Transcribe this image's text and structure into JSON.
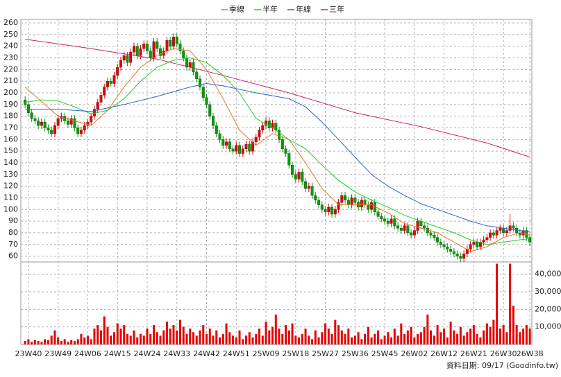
{
  "chart_data": {
    "type": "candlestick",
    "up_color": "#e60000",
    "down_color": "#00a000",
    "open": [
      194,
      190,
      183,
      178,
      176,
      172,
      175,
      170,
      168,
      165,
      172,
      178,
      180,
      176,
      173,
      178,
      170,
      165,
      168,
      172,
      175,
      180,
      186,
      192,
      198,
      205,
      210,
      208,
      215,
      222,
      228,
      232,
      226,
      235,
      240,
      232,
      238,
      242,
      236,
      230,
      244,
      238,
      232,
      236,
      245,
      240,
      248,
      242,
      236,
      230,
      222,
      226,
      218,
      212,
      205,
      196,
      190,
      180,
      172,
      165,
      160,
      155,
      158,
      152,
      150,
      155,
      148,
      152,
      156,
      150,
      158,
      162,
      168,
      172,
      176,
      170,
      174,
      168,
      160,
      152,
      148,
      138,
      130,
      126,
      132,
      124,
      118,
      120,
      112,
      108,
      104,
      100,
      98,
      102,
      96,
      100,
      106,
      112,
      108,
      104,
      110,
      106,
      102,
      108,
      104,
      100,
      106,
      98,
      94,
      92,
      90,
      88,
      92,
      86,
      84,
      82,
      86,
      80,
      78,
      82,
      90,
      86,
      84,
      80,
      78,
      76,
      72,
      70,
      68,
      66,
      64,
      62,
      60,
      58,
      62,
      66,
      70,
      72,
      68,
      72,
      74,
      76,
      80,
      78,
      82,
      84,
      80,
      82,
      86,
      84,
      80,
      78,
      82,
      76
    ],
    "high": [
      197,
      193,
      186,
      181,
      179,
      178,
      178,
      173,
      171,
      175,
      181,
      183,
      183,
      179,
      181,
      181,
      173,
      171,
      175,
      178,
      183,
      189,
      195,
      201,
      208,
      213,
      213,
      218,
      225,
      231,
      235,
      235,
      238,
      243,
      243,
      241,
      245,
      245,
      239,
      247,
      247,
      241,
      239,
      248,
      248,
      251,
      251,
      245,
      239,
      233,
      229,
      229,
      221,
      215,
      208,
      199,
      193,
      183,
      175,
      168,
      163,
      161,
      161,
      155,
      158,
      158,
      155,
      159,
      159,
      161,
      165,
      171,
      175,
      179,
      179,
      177,
      177,
      171,
      163,
      155,
      151,
      141,
      133,
      135,
      135,
      127,
      123,
      123,
      115,
      111,
      107,
      103,
      105,
      105,
      103,
      109,
      115,
      115,
      111,
      113,
      113,
      109,
      111,
      111,
      107,
      109,
      109,
      101,
      97,
      95,
      93,
      95,
      95,
      89,
      87,
      89,
      89,
      83,
      85,
      93,
      93,
      89,
      87,
      83,
      81,
      79,
      75,
      73,
      71,
      69,
      67,
      65,
      63,
      65,
      69,
      73,
      75,
      75,
      75,
      77,
      79,
      83,
      83,
      85,
      87,
      87,
      85,
      96,
      89,
      87,
      83,
      85,
      85,
      79
    ],
    "low": [
      187,
      180,
      175,
      173,
      169,
      169,
      167,
      165,
      162,
      162,
      169,
      175,
      173,
      170,
      170,
      167,
      162,
      162,
      165,
      169,
      172,
      177,
      183,
      189,
      195,
      202,
      205,
      205,
      212,
      219,
      225,
      223,
      223,
      232,
      229,
      229,
      235,
      233,
      227,
      227,
      235,
      229,
      229,
      233,
      237,
      237,
      239,
      233,
      227,
      219,
      219,
      215,
      209,
      202,
      193,
      187,
      177,
      169,
      162,
      157,
      152,
      152,
      149,
      147,
      147,
      145,
      145,
      149,
      147,
      147,
      155,
      159,
      165,
      169,
      167,
      167,
      165,
      157,
      149,
      145,
      135,
      127,
      123,
      123,
      121,
      115,
      115,
      109,
      105,
      101,
      97,
      95,
      95,
      93,
      93,
      97,
      103,
      105,
      101,
      101,
      103,
      99,
      99,
      101,
      97,
      97,
      95,
      91,
      89,
      87,
      85,
      85,
      83,
      81,
      79,
      79,
      77,
      75,
      75,
      79,
      83,
      81,
      77,
      75,
      73,
      69,
      67,
      65,
      63,
      61,
      59,
      57,
      55,
      55,
      59,
      63,
      67,
      65,
      65,
      69,
      71,
      73,
      75,
      75,
      79,
      77,
      77,
      79,
      81,
      77,
      75,
      75,
      73,
      69
    ],
    "close": [
      190,
      183,
      178,
      176,
      172,
      175,
      170,
      168,
      165,
      172,
      178,
      180,
      176,
      173,
      178,
      170,
      165,
      168,
      172,
      175,
      180,
      186,
      192,
      198,
      205,
      210,
      208,
      215,
      222,
      228,
      232,
      226,
      235,
      240,
      232,
      238,
      242,
      236,
      230,
      244,
      238,
      232,
      236,
      245,
      240,
      248,
      242,
      236,
      230,
      222,
      226,
      218,
      212,
      205,
      196,
      190,
      180,
      172,
      165,
      160,
      155,
      158,
      152,
      150,
      155,
      148,
      152,
      156,
      150,
      158,
      162,
      168,
      172,
      176,
      170,
      174,
      168,
      160,
      152,
      148,
      138,
      130,
      126,
      132,
      124,
      118,
      120,
      112,
      108,
      104,
      100,
      98,
      102,
      96,
      100,
      106,
      112,
      108,
      104,
      110,
      106,
      102,
      108,
      104,
      100,
      106,
      98,
      94,
      92,
      90,
      88,
      92,
      86,
      84,
      82,
      86,
      80,
      78,
      82,
      90,
      86,
      84,
      80,
      78,
      76,
      72,
      70,
      68,
      66,
      64,
      62,
      60,
      58,
      62,
      66,
      70,
      72,
      68,
      72,
      74,
      76,
      80,
      78,
      82,
      84,
      80,
      82,
      86,
      84,
      80,
      78,
      82,
      76,
      72
    ],
    "xlim": [
      -1.3,
      153.6
    ],
    "xticks": [
      {
        "value": 1,
        "label": "23W40"
      },
      {
        "value": 10,
        "label": "23W49"
      },
      {
        "value": 19,
        "label": "24W06"
      },
      {
        "value": 28,
        "label": "24W15"
      },
      {
        "value": 37,
        "label": "24W24"
      },
      {
        "value": 46,
        "label": "24W33"
      },
      {
        "value": 55,
        "label": "24W42"
      },
      {
        "value": 64,
        "label": "24W51"
      },
      {
        "value": 73,
        "label": "25W09"
      },
      {
        "value": 82,
        "label": "25W18"
      },
      {
        "value": 91,
        "label": "25W27"
      },
      {
        "value": 100,
        "label": "25W36"
      },
      {
        "value": 109,
        "label": "25W45"
      },
      {
        "value": 118,
        "label": "26W02"
      },
      {
        "value": 127,
        "label": "26W12"
      },
      {
        "value": 136,
        "label": "26W21"
      },
      {
        "value": 145,
        "label": "26W30"
      },
      {
        "value": 153,
        "label": "26W38"
      }
    ],
    "ylim": [
      55,
      263
    ],
    "yticks": [
      60,
      70,
      80,
      90,
      100,
      110,
      120,
      130,
      140,
      150,
      160,
      170,
      180,
      190,
      200,
      210,
      220,
      230,
      240,
      250,
      260
    ],
    "grid": true,
    "moving_averages": [
      {
        "name": "季線",
        "color": "#e87722",
        "x": [
          0,
          10,
          20,
          25,
          30,
          35,
          40,
          45,
          50,
          55,
          60,
          65,
          70,
          75,
          80,
          85,
          90,
          95,
          100,
          105,
          110,
          115,
          120,
          125,
          130,
          135,
          140,
          145,
          150,
          153
        ],
        "values": [
          205,
          180,
          172,
          185,
          205,
          222,
          232,
          238,
          236,
          220,
          195,
          168,
          155,
          165,
          160,
          140,
          118,
          104,
          104,
          104,
          97,
          88,
          84,
          80,
          72,
          64,
          68,
          76,
          80,
          78
        ]
      },
      {
        "name": "半年",
        "color": "#22cc22",
        "x": [
          0,
          5,
          10,
          15,
          20,
          25,
          30,
          35,
          40,
          45,
          50,
          55,
          60,
          65,
          70,
          75,
          80,
          85,
          90,
          95,
          100,
          105,
          110,
          115,
          120,
          125,
          130,
          135,
          140,
          145,
          150,
          153
        ],
        "values": [
          192,
          194,
          193,
          188,
          182,
          185,
          195,
          210,
          222,
          228,
          230,
          226,
          215,
          200,
          178,
          170,
          160,
          152,
          138,
          125,
          115,
          108,
          102,
          95,
          90,
          85,
          80,
          74,
          70,
          72,
          74,
          75
        ]
      },
      {
        "name": "年線",
        "color": "#2266cc",
        "x": [
          0,
          10,
          20,
          30,
          40,
          50,
          55,
          60,
          70,
          80,
          85,
          90,
          95,
          100,
          105,
          110,
          115,
          120,
          125,
          130,
          135,
          140,
          145,
          150,
          153
        ],
        "values": [
          186,
          186,
          184,
          190,
          197,
          205,
          208,
          206,
          200,
          195,
          188,
          175,
          160,
          145,
          130,
          120,
          112,
          105,
          100,
          95,
          90,
          86,
          84,
          82,
          81
        ]
      },
      {
        "name": "三年",
        "color": "#cc2266",
        "x": [
          0,
          20,
          40,
          60,
          80,
          100,
          120,
          140,
          153
        ],
        "values": [
          246,
          238,
          229,
          215,
          200,
          183,
          171,
          157,
          145
        ]
      }
    ],
    "volume": {
      "color": "#e60000",
      "ylim": [
        0,
        47000
      ],
      "yticks": [
        {
          "value": 10000,
          "label": "10,000"
        },
        {
          "value": 20000,
          "label": "20,000"
        },
        {
          "value": 30000,
          "label": "30,000"
        },
        {
          "value": 40000,
          "label": "40,000"
        }
      ],
      "values": [
        2000,
        3000,
        1500,
        2500,
        2000,
        1500,
        3000,
        2500,
        5000,
        8000,
        4000,
        2000,
        3000,
        1500,
        2500,
        2000,
        3000,
        6000,
        4000,
        5000,
        3000,
        9000,
        11000,
        8000,
        16000,
        10000,
        5000,
        7000,
        12000,
        9000,
        11000,
        6000,
        5000,
        8000,
        4000,
        6000,
        5000,
        9000,
        6000,
        11000,
        7000,
        5000,
        8000,
        13000,
        9000,
        11000,
        8000,
        14000,
        10000,
        6000,
        9000,
        7000,
        5000,
        8000,
        11000,
        6000,
        9000,
        5000,
        8000,
        4000,
        6000,
        12000,
        7000,
        5000,
        4000,
        8000,
        3000,
        5000,
        7000,
        4000,
        6000,
        9000,
        5000,
        13000,
        8000,
        10000,
        17000,
        9000,
        6000,
        11000,
        8000,
        12000,
        5000,
        4000,
        6000,
        9000,
        5000,
        3000,
        8000,
        4000,
        7000,
        12000,
        9000,
        6000,
        14000,
        11000,
        8000,
        6000,
        9000,
        4000,
        5000,
        7000,
        3000,
        6000,
        10000,
        4000,
        6000,
        8000,
        3000,
        5000,
        7000,
        4000,
        9000,
        5000,
        12000,
        6000,
        8000,
        10000,
        4000,
        6000,
        7000,
        10000,
        17000,
        8000,
        5000,
        11000,
        7000,
        9000,
        4000,
        13000,
        8000,
        6000,
        10000,
        5000,
        7000,
        9000,
        11000,
        6000,
        4000,
        8000,
        12000,
        10000,
        14000,
        46000,
        9000,
        11000,
        7000,
        46000,
        22000,
        11000,
        7000,
        9000,
        11000,
        9000
      ]
    },
    "footer": "資料日期: 09/17  (Goodinfo.tw)"
  }
}
